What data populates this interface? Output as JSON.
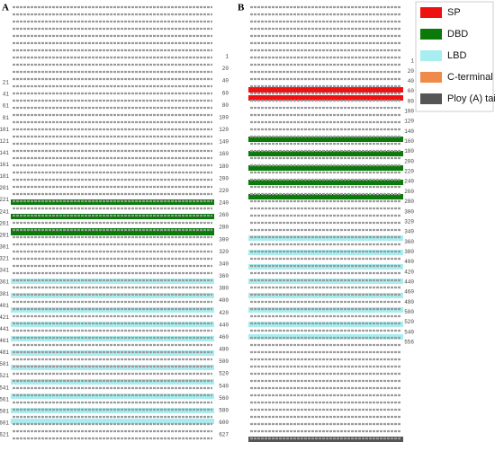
{
  "panels": [
    {
      "label": "A",
      "left_numbers": [
        21,
        41,
        61,
        81,
        101,
        121,
        141,
        161,
        181,
        201,
        221,
        241,
        261,
        281,
        301,
        321,
        341,
        361,
        381,
        401,
        421,
        441,
        461,
        481,
        501,
        521,
        541,
        561,
        581,
        601,
        621
      ],
      "right_numbers": [
        1,
        20,
        40,
        60,
        80,
        100,
        120,
        140,
        160,
        180,
        200,
        220,
        240,
        260,
        280,
        300,
        320,
        340,
        360,
        380,
        400,
        420,
        440,
        460,
        480,
        500,
        520,
        540,
        560,
        580,
        600,
        627
      ]
    },
    {
      "label": "B",
      "right_numbers": [
        1,
        20,
        40,
        60,
        80,
        100,
        120,
        140,
        160,
        180,
        200,
        220,
        240,
        260,
        280,
        300,
        320,
        340,
        360,
        380,
        400,
        420,
        440,
        460,
        480,
        500,
        520,
        540,
        556
      ]
    }
  ],
  "legend": [
    {
      "label": "SP",
      "color": "#ee1111"
    },
    {
      "label": "DBD",
      "color": "#0a7a0a"
    },
    {
      "label": "LBD",
      "color": "#a8eef0"
    },
    {
      "label": "C-terminal",
      "color": "#f08a4b"
    },
    {
      "label": "Ploy (A) tail",
      "color": "#555555"
    }
  ]
}
